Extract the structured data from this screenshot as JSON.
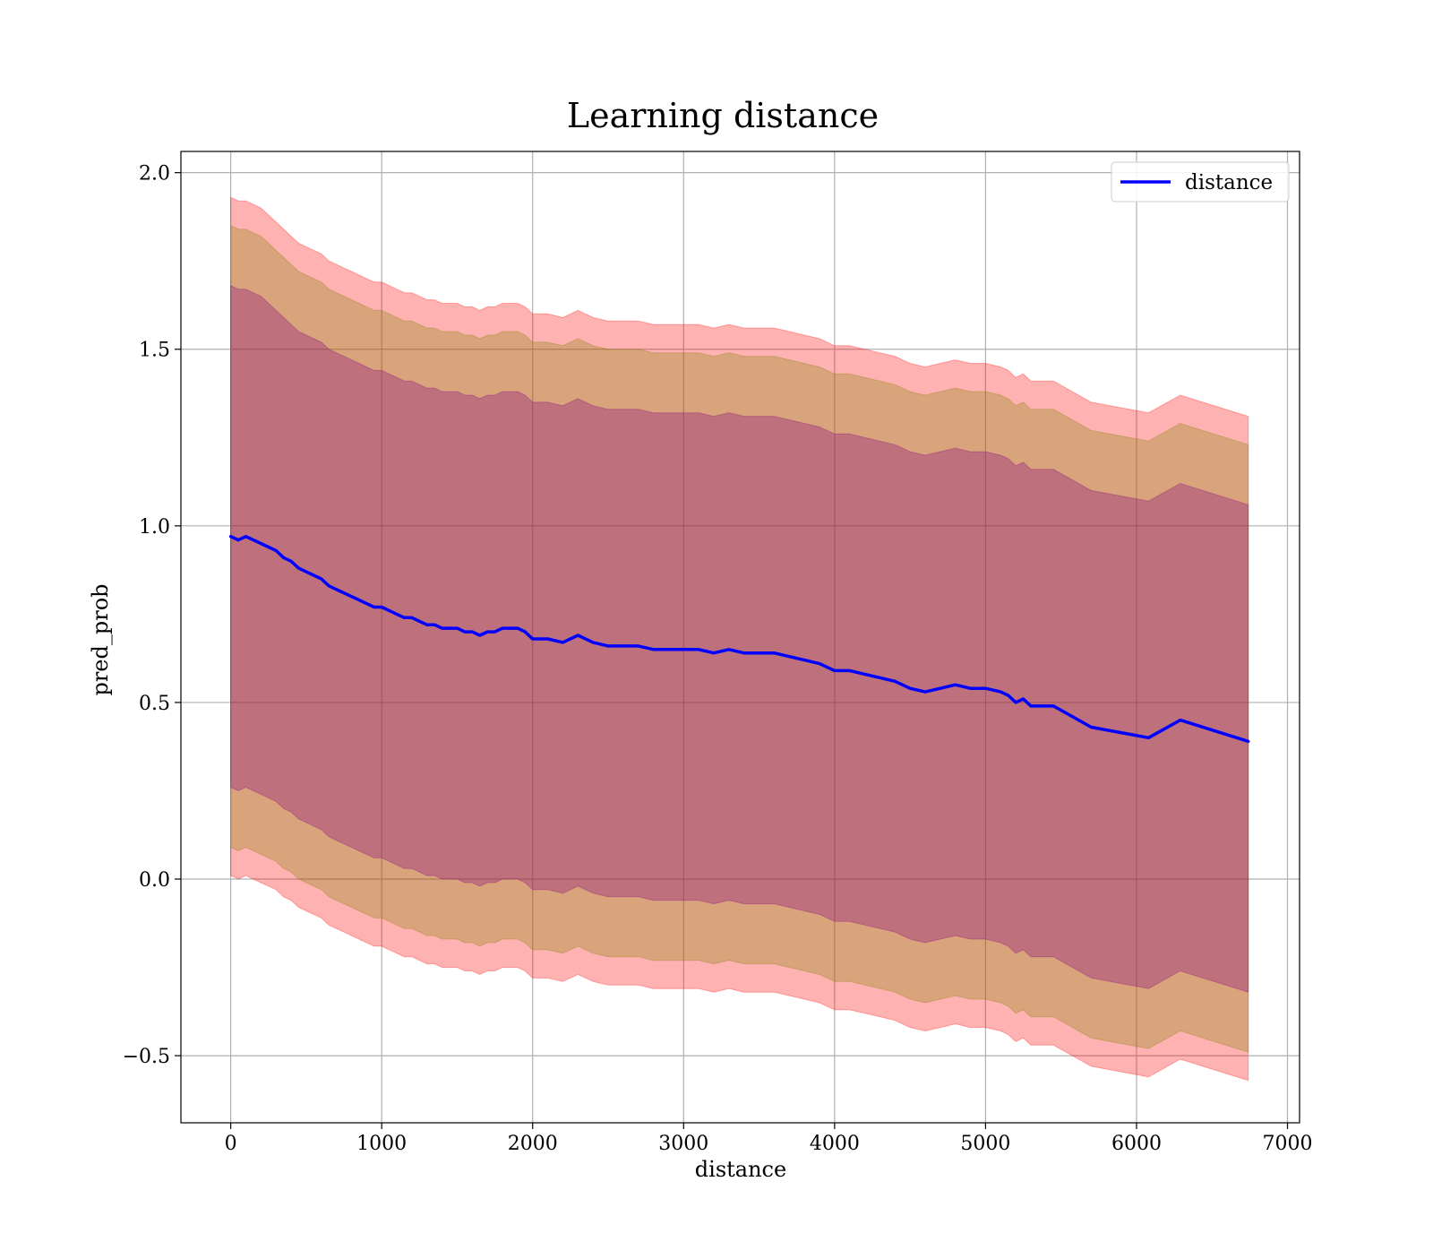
{
  "chart_data": {
    "type": "area",
    "title": "Learning distance",
    "xlabel": "distance",
    "ylabel": "pred_prob",
    "xlim": [
      -330,
      7080
    ],
    "ylim": [
      -0.69,
      2.06
    ],
    "xticks": [
      0,
      1000,
      2000,
      3000,
      4000,
      5000,
      6000,
      7000
    ],
    "xtick_labels": [
      "0",
      "1000",
      "2000",
      "3000",
      "4000",
      "5000",
      "6000",
      "7000"
    ],
    "yticks": [
      -0.5,
      0.0,
      0.5,
      1.0,
      1.5,
      2.0
    ],
    "ytick_labels": [
      "−0.5",
      "0.0",
      "0.5",
      "1.0",
      "1.5",
      "2.0"
    ],
    "grid": true,
    "legend": {
      "position": "upper right",
      "entries": [
        "distance"
      ]
    },
    "series": [
      {
        "name": "distance",
        "color": "#0000ff",
        "x": [
          0,
          50,
          100,
          150,
          200,
          250,
          300,
          350,
          400,
          450,
          500,
          550,
          600,
          650,
          700,
          750,
          800,
          850,
          900,
          950,
          1000,
          1050,
          1100,
          1150,
          1200,
          1250,
          1300,
          1350,
          1400,
          1450,
          1500,
          1550,
          1600,
          1650,
          1700,
          1750,
          1800,
          1850,
          1900,
          1950,
          2000,
          2100,
          2200,
          2300,
          2400,
          2500,
          2600,
          2700,
          2800,
          2900,
          3000,
          3100,
          3200,
          3300,
          3400,
          3500,
          3600,
          3700,
          3800,
          3900,
          4000,
          4100,
          4200,
          4300,
          4400,
          4500,
          4600,
          4700,
          4800,
          4900,
          5000,
          5100,
          5150,
          5200,
          5250,
          5300,
          5350,
          5450,
          5700,
          6080,
          6290,
          6740
        ],
        "values": [
          0.97,
          0.96,
          0.97,
          0.96,
          0.95,
          0.94,
          0.93,
          0.91,
          0.9,
          0.88,
          0.87,
          0.86,
          0.85,
          0.83,
          0.82,
          0.81,
          0.8,
          0.79,
          0.78,
          0.77,
          0.77,
          0.76,
          0.75,
          0.74,
          0.74,
          0.73,
          0.72,
          0.72,
          0.71,
          0.71,
          0.71,
          0.7,
          0.7,
          0.69,
          0.7,
          0.7,
          0.71,
          0.71,
          0.71,
          0.7,
          0.68,
          0.68,
          0.67,
          0.69,
          0.67,
          0.66,
          0.66,
          0.66,
          0.65,
          0.65,
          0.65,
          0.65,
          0.64,
          0.65,
          0.64,
          0.64,
          0.64,
          0.63,
          0.62,
          0.61,
          0.59,
          0.59,
          0.58,
          0.57,
          0.56,
          0.54,
          0.53,
          0.54,
          0.55,
          0.54,
          0.54,
          0.53,
          0.52,
          0.5,
          0.51,
          0.49,
          0.49,
          0.49,
          0.43,
          0.4,
          0.45,
          0.39
        ],
        "bands": [
          {
            "color": "#ff0000",
            "opacity": 0.3,
            "upper": [
              1.93,
              1.92,
              1.92,
              1.91,
              1.9,
              1.88,
              1.86,
              1.84,
              1.82,
              1.8,
              1.79,
              1.78,
              1.77,
              1.75,
              1.74,
              1.73,
              1.72,
              1.71,
              1.7,
              1.69,
              1.69,
              1.68,
              1.67,
              1.66,
              1.66,
              1.65,
              1.64,
              1.64,
              1.63,
              1.63,
              1.63,
              1.62,
              1.62,
              1.61,
              1.62,
              1.62,
              1.63,
              1.63,
              1.63,
              1.62,
              1.6,
              1.6,
              1.59,
              1.61,
              1.59,
              1.58,
              1.58,
              1.58,
              1.57,
              1.57,
              1.57,
              1.57,
              1.56,
              1.57,
              1.56,
              1.56,
              1.56,
              1.55,
              1.54,
              1.53,
              1.51,
              1.51,
              1.5,
              1.49,
              1.48,
              1.46,
              1.45,
              1.46,
              1.47,
              1.46,
              1.46,
              1.45,
              1.44,
              1.42,
              1.43,
              1.41,
              1.41,
              1.41,
              1.35,
              1.32,
              1.37,
              1.31
            ],
            "lower": [
              0.01,
              0.0,
              0.01,
              0.0,
              -0.01,
              -0.02,
              -0.03,
              -0.05,
              -0.06,
              -0.08,
              -0.09,
              -0.1,
              -0.11,
              -0.13,
              -0.14,
              -0.15,
              -0.16,
              -0.17,
              -0.18,
              -0.19,
              -0.19,
              -0.2,
              -0.21,
              -0.22,
              -0.22,
              -0.23,
              -0.24,
              -0.24,
              -0.25,
              -0.25,
              -0.25,
              -0.26,
              -0.26,
              -0.27,
              -0.26,
              -0.26,
              -0.25,
              -0.25,
              -0.25,
              -0.26,
              -0.28,
              -0.28,
              -0.29,
              -0.27,
              -0.29,
              -0.3,
              -0.3,
              -0.3,
              -0.31,
              -0.31,
              -0.31,
              -0.31,
              -0.32,
              -0.31,
              -0.32,
              -0.32,
              -0.32,
              -0.33,
              -0.34,
              -0.35,
              -0.37,
              -0.37,
              -0.38,
              -0.39,
              -0.4,
              -0.42,
              -0.43,
              -0.42,
              -0.41,
              -0.42,
              -0.42,
              -0.43,
              -0.44,
              -0.46,
              -0.45,
              -0.47,
              -0.47,
              -0.47,
              -0.53,
              -0.56,
              -0.51,
              -0.57
            ]
          },
          {
            "color": "#808000",
            "opacity": 0.3,
            "upper": [
              1.85,
              1.84,
              1.84,
              1.83,
              1.82,
              1.8,
              1.78,
              1.76,
              1.74,
              1.72,
              1.71,
              1.7,
              1.69,
              1.67,
              1.66,
              1.65,
              1.64,
              1.63,
              1.62,
              1.61,
              1.61,
              1.6,
              1.59,
              1.58,
              1.58,
              1.57,
              1.56,
              1.56,
              1.55,
              1.55,
              1.55,
              1.54,
              1.54,
              1.53,
              1.54,
              1.54,
              1.55,
              1.55,
              1.55,
              1.54,
              1.52,
              1.52,
              1.51,
              1.53,
              1.51,
              1.5,
              1.5,
              1.5,
              1.49,
              1.49,
              1.49,
              1.49,
              1.48,
              1.49,
              1.48,
              1.48,
              1.48,
              1.47,
              1.46,
              1.45,
              1.43,
              1.43,
              1.42,
              1.41,
              1.4,
              1.38,
              1.37,
              1.38,
              1.39,
              1.38,
              1.38,
              1.37,
              1.36,
              1.34,
              1.35,
              1.33,
              1.33,
              1.33,
              1.27,
              1.24,
              1.29,
              1.23
            ],
            "lower": [
              0.09,
              0.08,
              0.09,
              0.08,
              0.07,
              0.06,
              0.05,
              0.03,
              0.02,
              0.0,
              -0.01,
              -0.02,
              -0.03,
              -0.05,
              -0.06,
              -0.07,
              -0.08,
              -0.09,
              -0.1,
              -0.11,
              -0.11,
              -0.12,
              -0.13,
              -0.14,
              -0.14,
              -0.15,
              -0.16,
              -0.16,
              -0.17,
              -0.17,
              -0.17,
              -0.18,
              -0.18,
              -0.19,
              -0.18,
              -0.18,
              -0.17,
              -0.17,
              -0.17,
              -0.18,
              -0.2,
              -0.2,
              -0.21,
              -0.19,
              -0.21,
              -0.22,
              -0.22,
              -0.22,
              -0.23,
              -0.23,
              -0.23,
              -0.23,
              -0.24,
              -0.23,
              -0.24,
              -0.24,
              -0.24,
              -0.25,
              -0.26,
              -0.27,
              -0.29,
              -0.29,
              -0.3,
              -0.31,
              -0.32,
              -0.34,
              -0.35,
              -0.34,
              -0.33,
              -0.34,
              -0.34,
              -0.35,
              -0.36,
              -0.38,
              -0.37,
              -0.39,
              -0.39,
              -0.39,
              -0.45,
              -0.48,
              -0.43,
              -0.49
            ]
          },
          {
            "color": "#800080",
            "opacity": 0.3,
            "upper": [
              1.68,
              1.67,
              1.67,
              1.66,
              1.65,
              1.63,
              1.61,
              1.59,
              1.57,
              1.55,
              1.54,
              1.53,
              1.52,
              1.5,
              1.49,
              1.48,
              1.47,
              1.46,
              1.45,
              1.44,
              1.44,
              1.43,
              1.42,
              1.41,
              1.41,
              1.4,
              1.39,
              1.39,
              1.38,
              1.38,
              1.38,
              1.37,
              1.37,
              1.36,
              1.37,
              1.37,
              1.38,
              1.38,
              1.38,
              1.37,
              1.35,
              1.35,
              1.34,
              1.36,
              1.34,
              1.33,
              1.33,
              1.33,
              1.32,
              1.32,
              1.32,
              1.32,
              1.31,
              1.32,
              1.31,
              1.31,
              1.31,
              1.3,
              1.29,
              1.28,
              1.26,
              1.26,
              1.25,
              1.24,
              1.23,
              1.21,
              1.2,
              1.21,
              1.22,
              1.21,
              1.21,
              1.2,
              1.19,
              1.17,
              1.18,
              1.16,
              1.16,
              1.16,
              1.1,
              1.07,
              1.12,
              1.06
            ],
            "lower": [
              0.26,
              0.25,
              0.26,
              0.25,
              0.24,
              0.23,
              0.22,
              0.2,
              0.19,
              0.17,
              0.16,
              0.15,
              0.14,
              0.12,
              0.11,
              0.1,
              0.09,
              0.08,
              0.07,
              0.06,
              0.06,
              0.05,
              0.04,
              0.03,
              0.03,
              0.02,
              0.01,
              0.01,
              0.0,
              0.0,
              0.0,
              -0.01,
              -0.01,
              -0.02,
              -0.01,
              -0.01,
              0.0,
              0.0,
              0.0,
              -0.01,
              -0.03,
              -0.03,
              -0.04,
              -0.02,
              -0.04,
              -0.05,
              -0.05,
              -0.05,
              -0.06,
              -0.06,
              -0.06,
              -0.06,
              -0.07,
              -0.06,
              -0.07,
              -0.07,
              -0.07,
              -0.08,
              -0.09,
              -0.1,
              -0.12,
              -0.12,
              -0.13,
              -0.14,
              -0.15,
              -0.17,
              -0.18,
              -0.17,
              -0.16,
              -0.17,
              -0.17,
              -0.18,
              -0.19,
              -0.21,
              -0.2,
              -0.22,
              -0.22,
              -0.22,
              -0.28,
              -0.31,
              -0.26,
              -0.32
            ]
          }
        ]
      }
    ]
  }
}
